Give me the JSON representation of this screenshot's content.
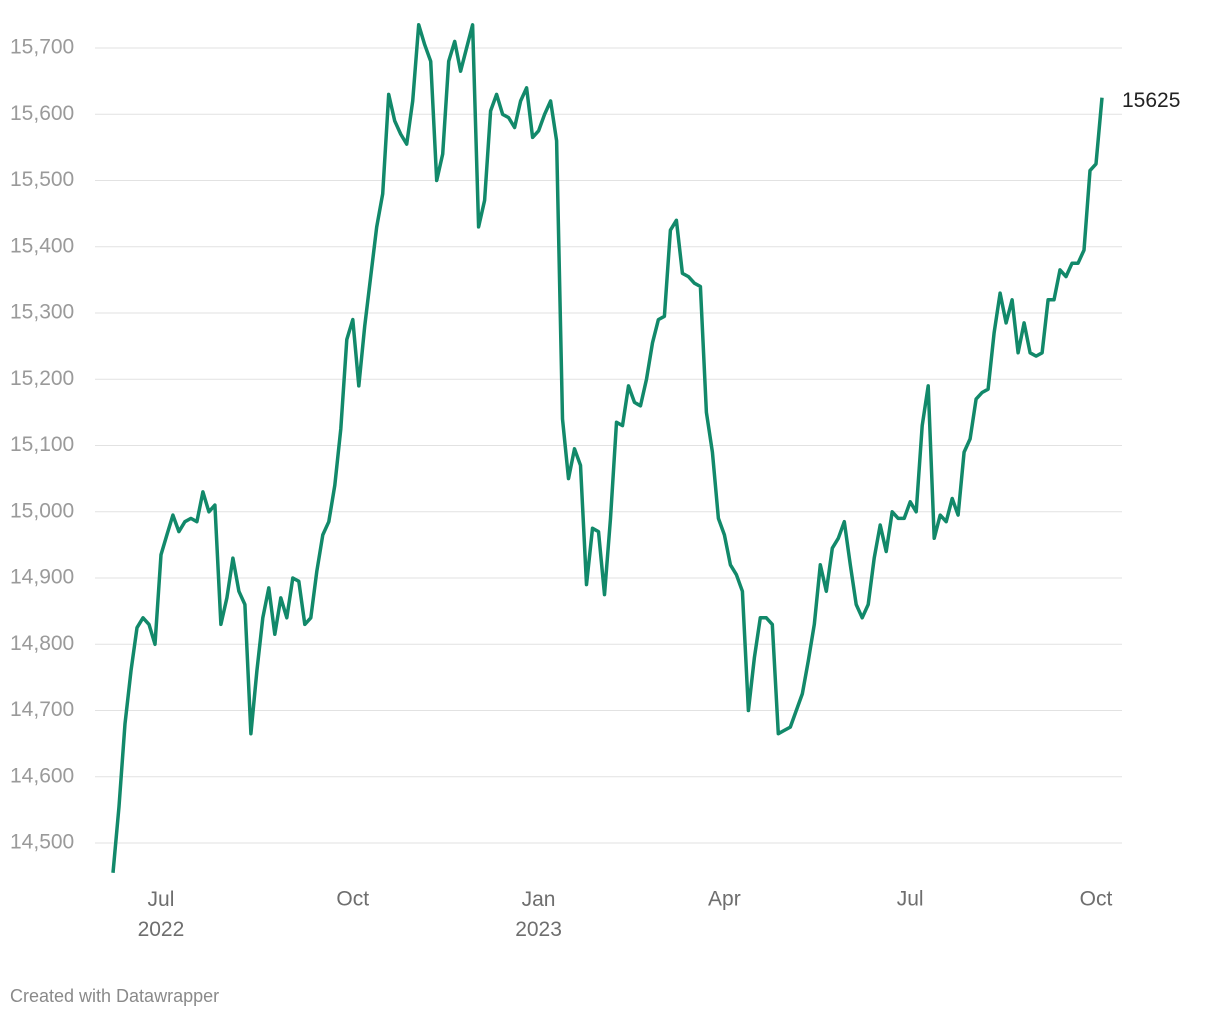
{
  "chart_data": {
    "type": "line",
    "credit": "Created with Datawrapper",
    "categories": [
      null,
      null,
      null,
      null,
      null,
      null,
      null,
      null,
      "Jul 2022",
      null,
      null,
      null,
      null,
      null,
      null,
      null,
      null,
      null,
      null,
      null,
      null,
      null,
      null,
      null,
      null,
      null,
      null,
      null,
      null,
      null,
      null,
      null,
      null,
      null,
      null,
      null,
      null,
      null,
      null,
      null,
      "Oct",
      null,
      null,
      null,
      null,
      null,
      null,
      null,
      null,
      null,
      null,
      null,
      null,
      null,
      null,
      null,
      null,
      null,
      null,
      null,
      null,
      null,
      null,
      null,
      null,
      null,
      null,
      null,
      null,
      null,
      null,
      "Jan 2023",
      null,
      null,
      null,
      null,
      null,
      null,
      null,
      null,
      null,
      null,
      null,
      null,
      null,
      null,
      null,
      null,
      null,
      null,
      null,
      null,
      null,
      null,
      null,
      null,
      null,
      null,
      null,
      null,
      null,
      null,
      "Apr",
      null,
      null,
      null,
      null,
      null,
      null,
      null,
      null,
      null,
      null,
      null,
      null,
      null,
      null,
      null,
      null,
      null,
      null,
      null,
      null,
      null,
      null,
      null,
      null,
      null,
      null,
      null,
      null,
      null,
      null,
      "Jul",
      null,
      null,
      null,
      null,
      null,
      null,
      null,
      null,
      null,
      null,
      null,
      null,
      null,
      null,
      null,
      null,
      null,
      null,
      null,
      null,
      null,
      null,
      null,
      null,
      null,
      null,
      null,
      null,
      null,
      null,
      "Oct",
      null
    ],
    "series": [
      {
        "name": null,
        "color": "#12896a",
        "values": [
          14455,
          14555,
          14680,
          14760,
          14825,
          14840,
          14830,
          14800,
          14935,
          14965,
          14995,
          14970,
          14985,
          14990,
          14985,
          15030,
          15000,
          15010,
          14830,
          14870,
          14930,
          14880,
          14860,
          14665,
          14760,
          14840,
          14885,
          14815,
          14870,
          14840,
          14900,
          14895,
          14830,
          14840,
          14910,
          14965,
          14985,
          15040,
          15125,
          15260,
          15290,
          15190,
          15280,
          15355,
          15430,
          15480,
          15630,
          15590,
          15570,
          15555,
          15620,
          15735,
          15705,
          15680,
          15500,
          15540,
          15680,
          15710,
          15665,
          15700,
          15735,
          15430,
          15470,
          15605,
          15630,
          15600,
          15595,
          15580,
          15620,
          15640,
          15565,
          15575,
          15600,
          15620,
          15560,
          15140,
          15050,
          15095,
          15070,
          14890,
          14975,
          14970,
          14875,
          14990,
          15135,
          15130,
          15190,
          15165,
          15160,
          15200,
          15255,
          15290,
          15295,
          15425,
          15440,
          15360,
          15355,
          15345,
          15340,
          15150,
          15090,
          14990,
          14965,
          14920,
          14905,
          14880,
          14700,
          14780,
          14840,
          14840,
          14830,
          14665,
          14670,
          14675,
          14700,
          14725,
          14775,
          14830,
          14920,
          14880,
          14945,
          14960,
          14985,
          14920,
          14860,
          14840,
          14860,
          14930,
          14980,
          14940,
          15000,
          14990,
          14990,
          15015,
          15000,
          15130,
          15190,
          14960,
          14995,
          14985,
          15020,
          14995,
          15090,
          15110,
          15170,
          15180,
          15185,
          15270,
          15330,
          15285,
          15320,
          15240,
          15285,
          15240,
          15235,
          15240,
          15320,
          15320,
          15365,
          15355,
          15375,
          15375,
          15395,
          15515,
          15525,
          15625
        ],
        "value_labels": [
          null,
          null,
          null,
          null,
          null,
          null,
          null,
          null,
          null,
          null,
          null,
          null,
          null,
          null,
          null,
          null,
          null,
          null,
          null,
          null,
          null,
          null,
          null,
          null,
          null,
          null,
          null,
          null,
          null,
          null,
          null,
          null,
          null,
          null,
          null,
          null,
          null,
          null,
          null,
          null,
          null,
          null,
          null,
          null,
          null,
          null,
          null,
          null,
          null,
          null,
          null,
          null,
          null,
          null,
          null,
          null,
          null,
          null,
          null,
          null,
          null,
          null,
          null,
          null,
          null,
          null,
          null,
          null,
          null,
          null,
          null,
          null,
          null,
          null,
          null,
          null,
          null,
          null,
          null,
          null,
          null,
          null,
          null,
          null,
          null,
          null,
          null,
          null,
          null,
          null,
          null,
          null,
          null,
          null,
          null,
          null,
          null,
          null,
          null,
          null,
          null,
          null,
          null,
          null,
          null,
          null,
          null,
          null,
          null,
          null,
          null,
          null,
          null,
          null,
          null,
          null,
          null,
          null,
          null,
          null,
          null,
          null,
          null,
          null,
          null,
          null,
          null,
          null,
          null,
          null,
          null,
          null,
          null,
          null,
          null,
          null,
          null,
          null,
          null,
          null,
          null,
          null,
          null,
          null,
          null,
          null,
          null,
          null,
          null,
          null,
          null,
          null,
          null,
          null,
          null,
          null,
          null,
          null,
          null,
          null,
          null,
          null,
          null,
          null,
          null,
          "15625"
        ]
      }
    ],
    "ylim": [
      14440,
      15760
    ],
    "yticks": [
      {
        "value": 14500,
        "label": "14,500"
      },
      {
        "value": 14600,
        "label": "14,600"
      },
      {
        "value": 14700,
        "label": "14,700"
      },
      {
        "value": 14800,
        "label": "14,800"
      },
      {
        "value": 14900,
        "label": "14,900"
      },
      {
        "value": 15000,
        "label": "15,000"
      },
      {
        "value": 15100,
        "label": "15,100"
      },
      {
        "value": 15200,
        "label": "15,200"
      },
      {
        "value": 15300,
        "label": "15,300"
      },
      {
        "value": 15400,
        "label": "15,400"
      },
      {
        "value": 15500,
        "label": "15,500"
      },
      {
        "value": 15600,
        "label": "15,600"
      },
      {
        "value": 15700,
        "label": "15,700"
      }
    ],
    "grid": true
  }
}
